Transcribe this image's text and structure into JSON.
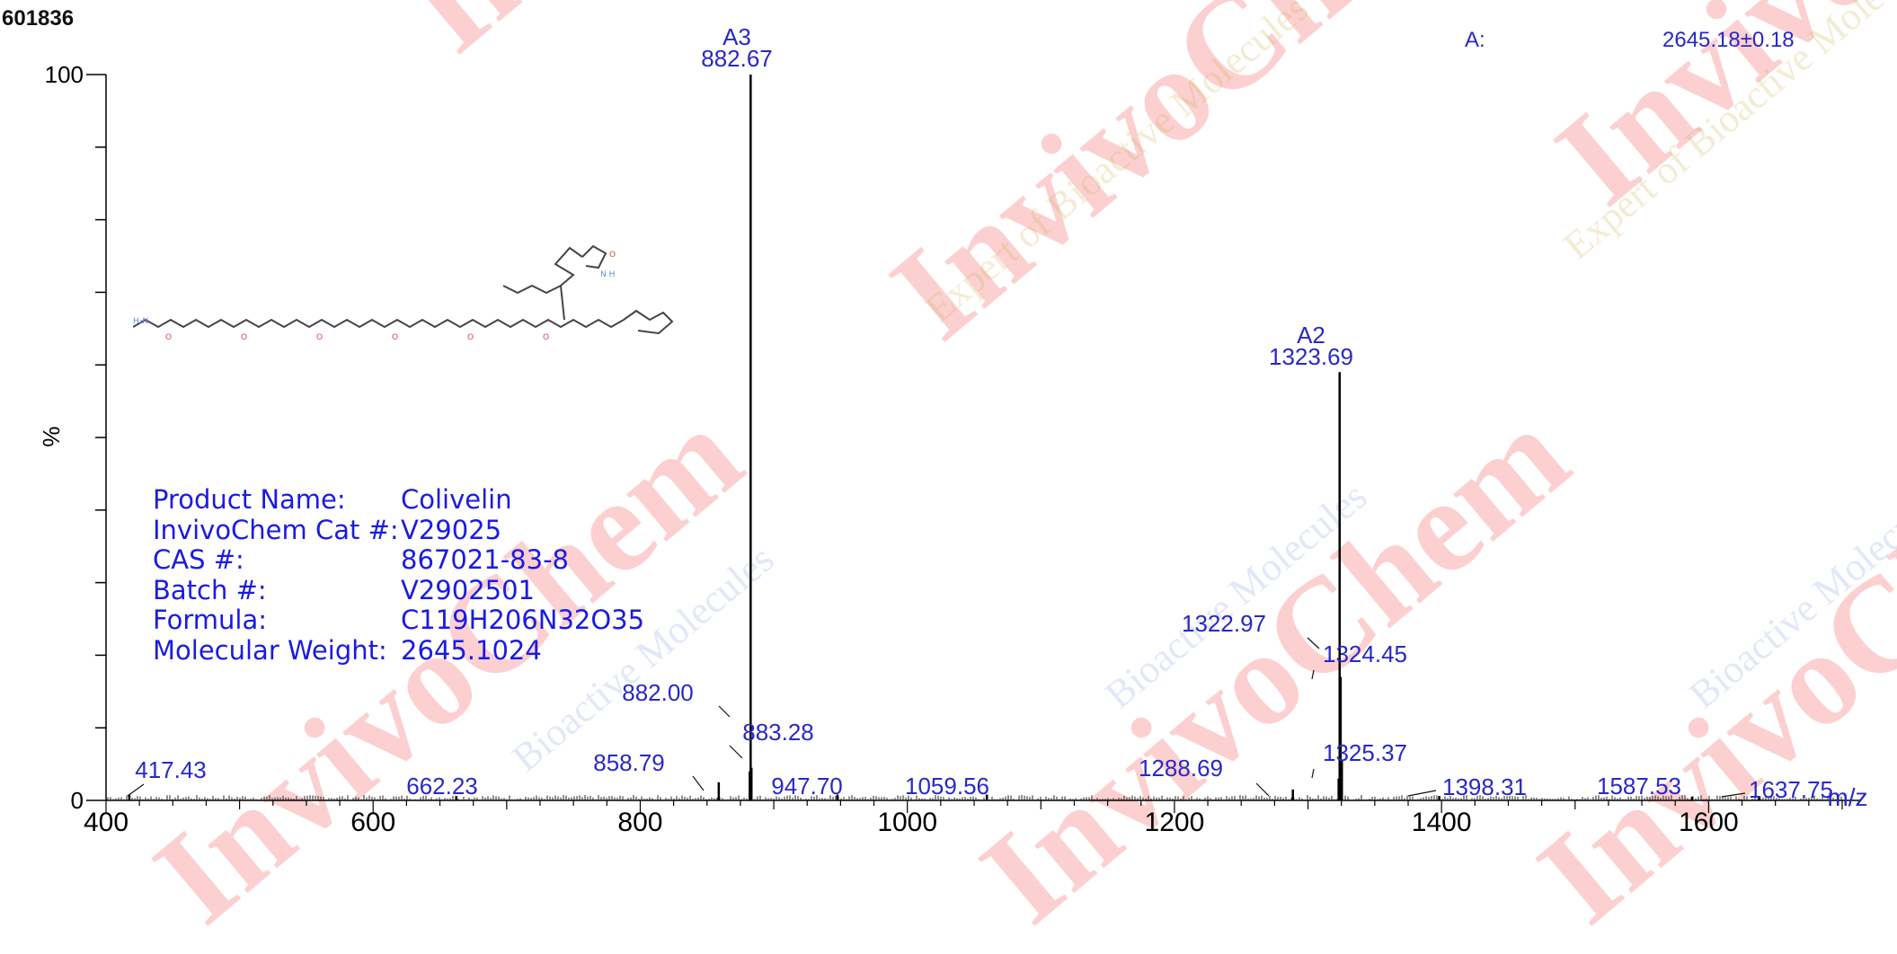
{
  "sample_id": "601836",
  "watermark": {
    "brand": "InvivoChem",
    "tagline": "Expert of Bioactive Molecules",
    "alt": "Bioactive Molecules"
  },
  "product_info": {
    "rows": [
      {
        "label": "Product Name:",
        "value": "Colivelin"
      },
      {
        "label": "InvivoChem Cat #:",
        "value": "V29025"
      },
      {
        "label": "CAS #:",
        "value": "867021-83-8"
      },
      {
        "label": "Batch #:",
        "value": "V2902501"
      },
      {
        "label": "Formula:",
        "value": "C119H206N32O35"
      },
      {
        "label": "Molecular Weight:",
        "value": "2645.1024"
      }
    ]
  },
  "deconvolution": {
    "label": "A:",
    "value": "2645.18±0.18"
  },
  "colors": {
    "axis": "#000000",
    "peak_label": "#2828c8",
    "info_text": "#1a1ae6",
    "watermark_red": "#f02828"
  },
  "chart_data": {
    "type": "line",
    "xlabel": "m/z",
    "ylabel": "%",
    "xlim": [
      400,
      1700
    ],
    "ylim": [
      0,
      100
    ],
    "x_ticks": [
      400,
      600,
      800,
      1000,
      1200,
      1400,
      1600
    ],
    "y_ticks": [
      0,
      100
    ],
    "peaks": [
      {
        "mz": 882.67,
        "intensity": 100,
        "label": "882.67",
        "tag": "A3"
      },
      {
        "mz": 1323.69,
        "intensity": 59,
        "label": "1323.69",
        "tag": "A2"
      },
      {
        "mz": 1322.97,
        "intensity": 3,
        "label": "1322.97"
      },
      {
        "mz": 1324.45,
        "intensity": 17,
        "label": "1324.45"
      },
      {
        "mz": 1325.37,
        "intensity": 5.5,
        "label": "1325.37"
      },
      {
        "mz": 882.0,
        "intensity": 4,
        "label": "882.00"
      },
      {
        "mz": 883.28,
        "intensity": 4.5,
        "label": "883.28"
      },
      {
        "mz": 858.79,
        "intensity": 2.5,
        "label": "858.79"
      },
      {
        "mz": 947.7,
        "intensity": 0.8,
        "label": "947.70"
      },
      {
        "mz": 1059.56,
        "intensity": 0.8,
        "label": "1059.56"
      },
      {
        "mz": 1288.69,
        "intensity": 1.5,
        "label": "1288.69"
      },
      {
        "mz": 1398.31,
        "intensity": 0.6,
        "label": "1398.31"
      },
      {
        "mz": 1587.53,
        "intensity": 0.5,
        "label": "1587.53"
      },
      {
        "mz": 1637.75,
        "intensity": 0.6,
        "label": "1637.75"
      },
      {
        "mz": 417.43,
        "intensity": 0.8,
        "label": "417.43"
      },
      {
        "mz": 662.23,
        "intensity": 0.6,
        "label": "662.23"
      }
    ]
  }
}
